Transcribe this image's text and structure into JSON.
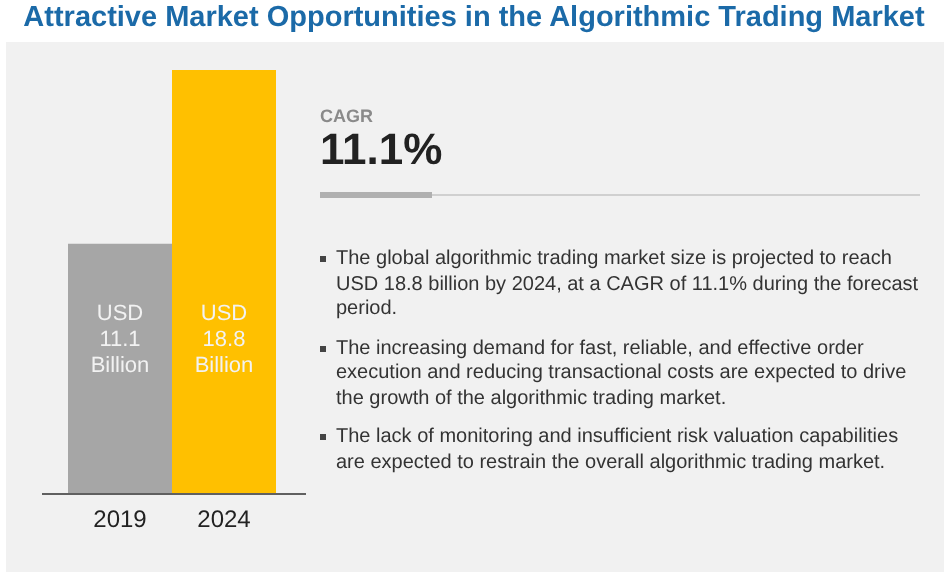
{
  "chart_data": {
    "type": "bar",
    "title": "Attractive Market Opportunities in the Algorithmic Trading Market",
    "categories": [
      "2019",
      "2024"
    ],
    "values": [
      11.1,
      18.8
    ],
    "colors": [
      "#a6a6a6",
      "#ffc000"
    ],
    "value_labels": [
      "USD 11.1 Billion",
      "USD 18.8 Billion"
    ],
    "grid": false,
    "legend": false,
    "tick_labels": "x",
    "annotations": [
      "CAGR",
      "11.1%",
      "The global algorithmic trading market size is projected to reach USD 18.8 billion by 2024, at a CAGR of 11.1% during the forecast period.",
      "The increasing demand for fast, reliable, and effective order execution and reducing transactional costs are expected to drive the growth of the algorithmic trading market.",
      "The lack of monitoring and insufficient risk valuation capabilities are expected to restrain the overall algorithmic trading market."
    ]
  }
}
